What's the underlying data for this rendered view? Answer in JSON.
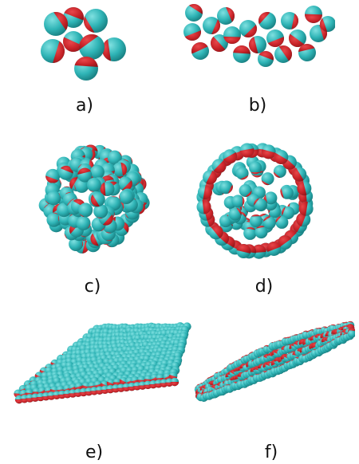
{
  "figure": {
    "panels": [
      {
        "label": "a)",
        "shape": "small-cluster",
        "particles": 8
      },
      {
        "label": "b)",
        "shape": "elongated-chain",
        "particles": 20
      },
      {
        "label": "c)",
        "shape": "spherical-cluster",
        "particles": 110
      },
      {
        "label": "d)",
        "shape": "hollow-spherical-shell",
        "particles": 95
      },
      {
        "label": "e)",
        "shape": "flat-sheet",
        "particles": 420
      },
      {
        "label": "f)",
        "shape": "curved-tube",
        "particles": 220
      }
    ],
    "colors": {
      "cyan_hemisphere": "#2fb4b6",
      "cyan_highlight": "#7fe0e0",
      "red_hemisphere": "#c62227",
      "red_dark": "#8e1418",
      "background": "#ffffff"
    },
    "particle_type": "janus-spheres"
  }
}
